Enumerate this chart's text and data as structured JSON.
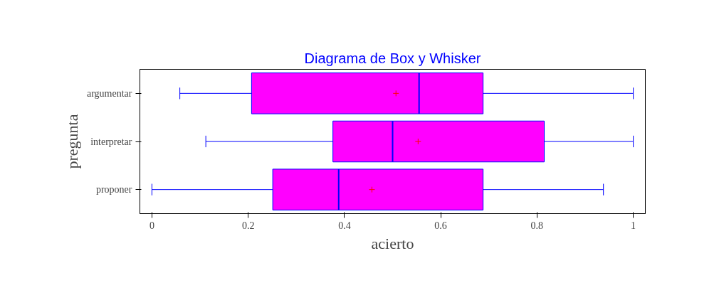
{
  "chart_data": {
    "type": "box",
    "title": "Diagrama de Box y Whisker",
    "xlabel": "acierto",
    "ylabel": "pregunta",
    "orientation": "horizontal",
    "categories": [
      "argumentar",
      "interpretar",
      "proponer"
    ],
    "series": [
      {
        "color": "#ff00ff",
        "boxes": [
          {
            "low": 0.058,
            "q1": 0.207,
            "median": 0.555,
            "q3": 0.688,
            "high": 1.0,
            "mean": 0.507
          },
          {
            "low": 0.112,
            "q1": 0.376,
            "median": 0.5,
            "q3": 0.815,
            "high": 1.0,
            "mean": 0.553
          },
          {
            "low": 0.0,
            "q1": 0.251,
            "median": 0.388,
            "q3": 0.688,
            "high": 0.938,
            "mean": 0.457
          }
        ]
      }
    ],
    "xlim": [
      -0.025,
      1.025
    ],
    "xticks": [
      0,
      0.2,
      0.4,
      0.6,
      0.8,
      1
    ],
    "grid": false
  }
}
